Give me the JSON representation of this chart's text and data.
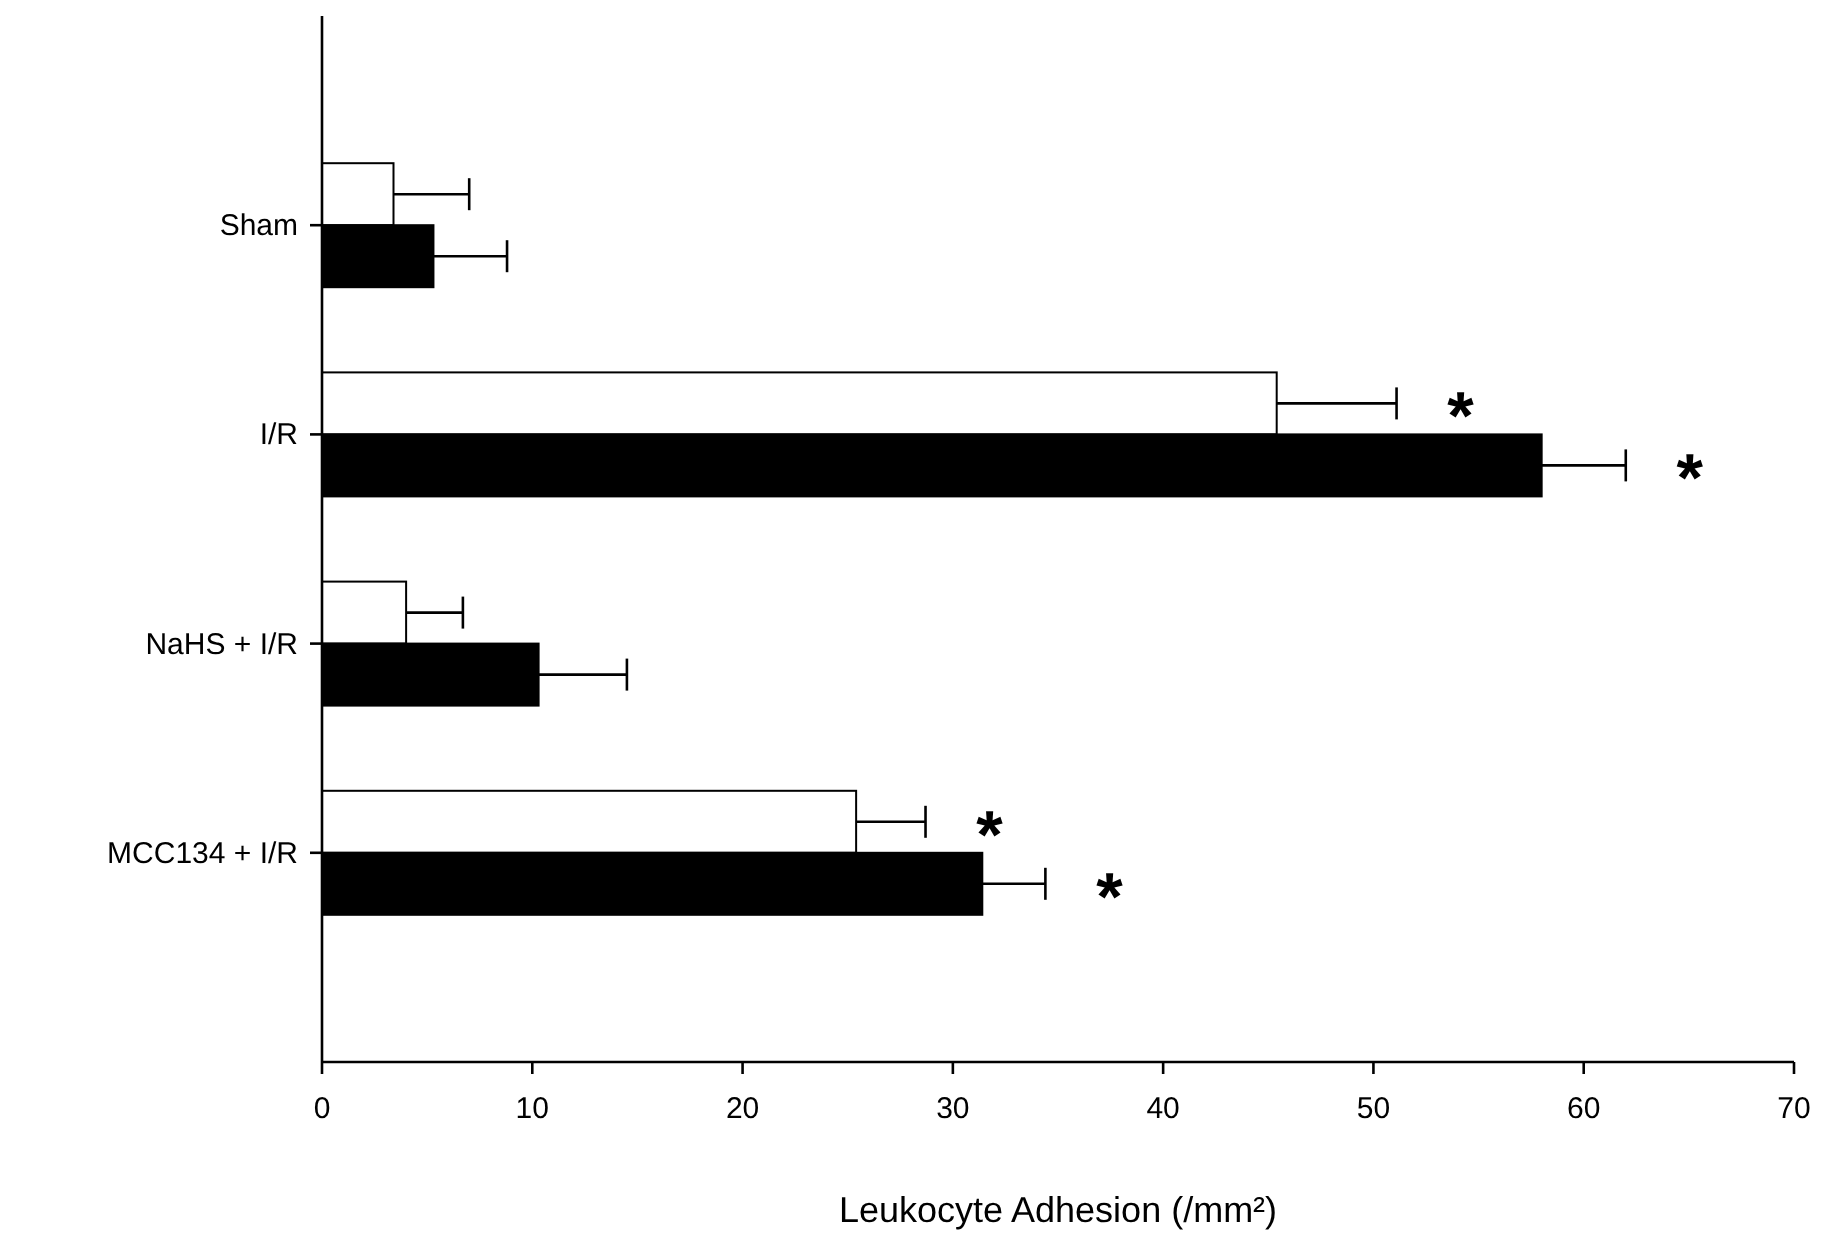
{
  "chart_data": {
    "type": "bar",
    "orientation": "horizontal",
    "xlabel": "Leukocyte Adhesion (/mm²)",
    "categories": [
      "Sham",
      "I/R",
      "NaHS + I/R",
      "MCC134 + I/R"
    ],
    "series": [
      {
        "color": "#ffffff",
        "values": [
          3.4,
          45.4,
          4.0,
          25.4
        ],
        "errors": [
          3.6,
          5.7,
          2.7,
          3.3
        ]
      },
      {
        "color": "#000000",
        "values": [
          5.3,
          58.0,
          10.3,
          31.4
        ],
        "errors": [
          3.5,
          4.0,
          4.2,
          3.0
        ]
      }
    ],
    "xlim": [
      0,
      70
    ],
    "xticks": [
      0,
      10,
      20,
      30,
      40,
      50,
      60,
      70
    ],
    "grid": false,
    "annotations": [
      {
        "text": "*",
        "x": 45.4,
        "y": "I/R"
      },
      {
        "text": "*",
        "x": 58.0,
        "y": "I/R"
      },
      {
        "text": "*",
        "x": 25.4,
        "y": "MCC134 + I/R"
      },
      {
        "text": "*",
        "x": 31.4,
        "y": "MCC134 + I/R"
      }
    ]
  }
}
